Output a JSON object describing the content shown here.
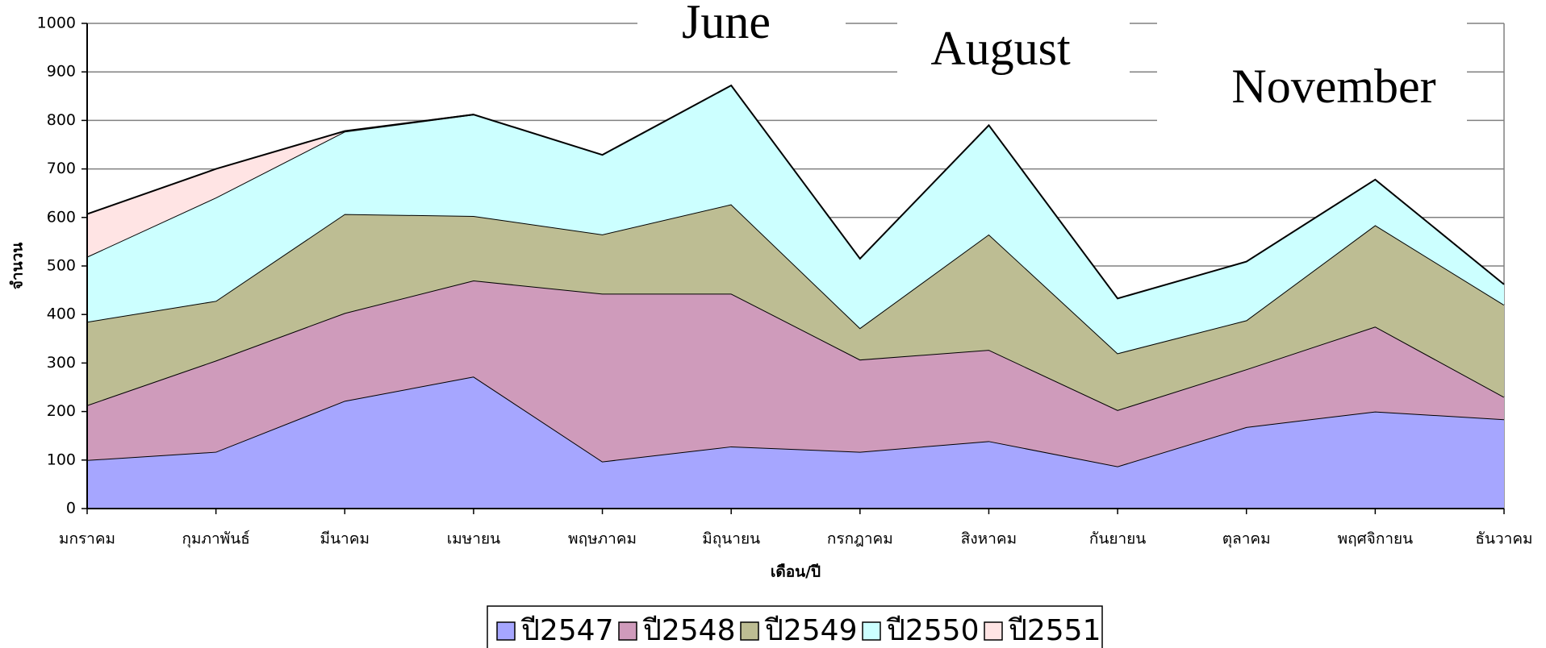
{
  "chart_data": {
    "type": "area",
    "stacked": true,
    "x_label": "เดือน/ปี",
    "y_label": "จำนวน",
    "annotations": [
      "June",
      "August",
      "November"
    ],
    "categories": [
      "มกราคม",
      "กุมภาพันธ์",
      "มีนาคม",
      "เมษายน",
      "พฤษภาคม",
      "มิถุนายน",
      "กรกฎาคม",
      "สิงหาคม",
      "กันยายน",
      "ตุลาคม",
      "พฤศจิกายน",
      "ธันวาคม"
    ],
    "series": [
      {
        "name": "ปี2547",
        "color": "#a6a6ff",
        "values": [
          100,
          117,
          222,
          272,
          97,
          128,
          117,
          139,
          87,
          168,
          200,
          184
        ]
      },
      {
        "name": "ปี2548",
        "color": "#cf9bbb",
        "values": [
          113,
          188,
          181,
          198,
          346,
          315,
          190,
          188,
          116,
          119,
          175,
          46
        ]
      },
      {
        "name": "ปี2549",
        "color": "#bdbd93",
        "values": [
          172,
          123,
          204,
          133,
          122,
          184,
          65,
          238,
          117,
          101,
          209,
          190
        ]
      },
      {
        "name": "ปี2550",
        "color": "#ccffff",
        "values": [
          134,
          213,
          170,
          209,
          164,
          245,
          143,
          225,
          113,
          121,
          94,
          42
        ]
      },
      {
        "name": "ปี2551",
        "color": "#ffe4e4",
        "values": [
          88,
          59,
          1,
          0,
          null,
          null,
          null,
          null,
          null,
          null,
          null,
          null
        ]
      }
    ],
    "ylim": [
      0,
      1000
    ],
    "yticks": [
      0,
      100,
      200,
      300,
      400,
      500,
      600,
      700,
      800,
      900,
      1000
    ],
    "grid": true
  }
}
